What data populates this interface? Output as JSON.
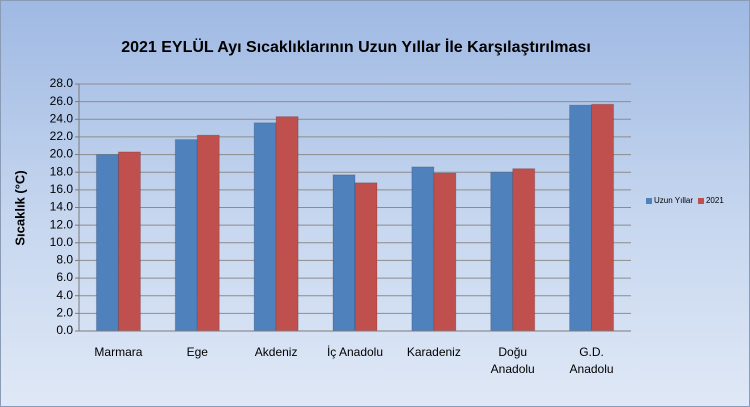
{
  "chart_data": {
    "type": "bar",
    "title": "2021 EYLÜL Ayı Sıcaklıklarının Uzun Yıllar İle Karşılaştırılması",
    "y_label": "Sıcaklık (°C)",
    "categories": [
      "Marmara",
      "Ege",
      "Akdeniz",
      "İç Anadolu",
      "Karadeniz",
      "Doğu Anadolu",
      "G.D. Anadolu"
    ],
    "series": [
      {
        "name": "Uzun Yıllar",
        "color": "#4f81bd",
        "values": [
          20.0,
          21.7,
          23.6,
          17.7,
          18.6,
          18.0,
          25.6
        ]
      },
      {
        "name": "2021",
        "color": "#c0504d",
        "values": [
          20.3,
          22.2,
          24.3,
          16.8,
          17.9,
          18.4,
          25.7
        ]
      }
    ],
    "ylim": [
      0,
      28
    ],
    "yticks": [
      {
        "value": 0,
        "label": "0.0"
      },
      {
        "value": 2,
        "label": "2.0"
      },
      {
        "value": 4,
        "label": "4.0"
      },
      {
        "value": 6,
        "label": "6.0"
      },
      {
        "value": 8,
        "label": "8.0"
      },
      {
        "value": 10,
        "label": "10.0"
      },
      {
        "value": 12,
        "label": "12.0"
      },
      {
        "value": 14,
        "label": "14.0"
      },
      {
        "value": 16,
        "label": "16.0"
      },
      {
        "value": 18,
        "label": "18.0"
      },
      {
        "value": 20,
        "label": "20.0"
      },
      {
        "value": 22,
        "label": "22.0"
      },
      {
        "value": 24,
        "label": "24.0"
      },
      {
        "value": 26,
        "label": "26.0"
      },
      {
        "value": 28,
        "label": "28.0"
      }
    ],
    "grid": true,
    "legend": "right"
  }
}
